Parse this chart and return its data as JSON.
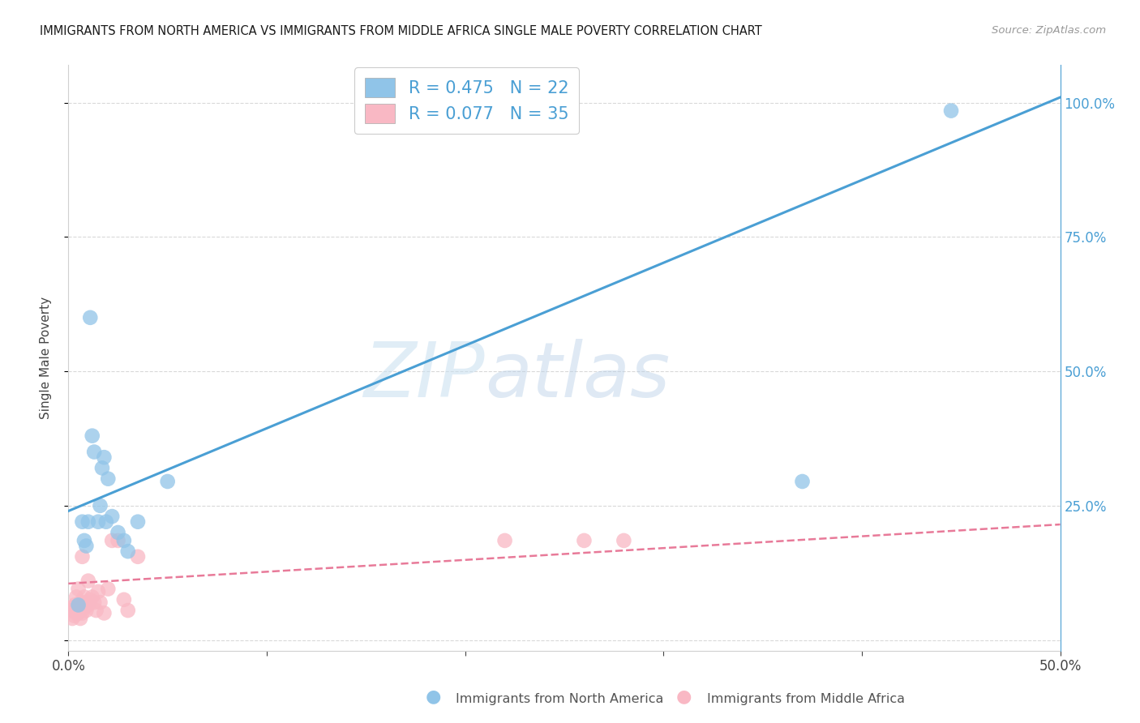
{
  "title": "IMMIGRANTS FROM NORTH AMERICA VS IMMIGRANTS FROM MIDDLE AFRICA SINGLE MALE POVERTY CORRELATION CHART",
  "source": "Source: ZipAtlas.com",
  "ylabel": "Single Male Poverty",
  "legend_label1": "Immigrants from North America",
  "legend_label2": "Immigrants from Middle Africa",
  "R1": 0.475,
  "N1": 22,
  "R2": 0.077,
  "N2": 35,
  "xlim": [
    0.0,
    0.5
  ],
  "ylim": [
    -0.02,
    1.07
  ],
  "xticks": [
    0.0,
    0.1,
    0.2,
    0.3,
    0.4,
    0.5
  ],
  "xtick_labels": [
    "0.0%",
    "",
    "",
    "",
    "",
    "50.0%"
  ],
  "yticks_right": [
    0.0,
    0.25,
    0.5,
    0.75,
    1.0
  ],
  "ytick_labels_right": [
    "",
    "25.0%",
    "50.0%",
    "75.0%",
    "100.0%"
  ],
  "color_blue": "#90c4e8",
  "color_blue_line": "#4a9fd4",
  "color_pink": "#f9b8c4",
  "color_pink_line": "#e87a99",
  "watermark_zip": "ZIP",
  "watermark_atlas": "atlas",
  "blue_line_x0": 0.0,
  "blue_line_y0": 0.24,
  "blue_line_x1": 0.5,
  "blue_line_y1": 1.01,
  "pink_line_x0": 0.0,
  "pink_line_y0": 0.105,
  "pink_line_x1": 0.5,
  "pink_line_y1": 0.215,
  "blue_x": [
    0.005,
    0.007,
    0.008,
    0.009,
    0.01,
    0.011,
    0.012,
    0.013,
    0.015,
    0.016,
    0.017,
    0.018,
    0.019,
    0.02,
    0.022,
    0.025,
    0.028,
    0.03,
    0.035,
    0.05,
    0.37,
    0.445
  ],
  "blue_y": [
    0.065,
    0.22,
    0.185,
    0.175,
    0.22,
    0.6,
    0.38,
    0.35,
    0.22,
    0.25,
    0.32,
    0.34,
    0.22,
    0.3,
    0.23,
    0.2,
    0.185,
    0.165,
    0.22,
    0.295,
    0.295,
    0.985
  ],
  "pink_x": [
    0.001,
    0.002,
    0.002,
    0.003,
    0.003,
    0.004,
    0.004,
    0.005,
    0.005,
    0.006,
    0.006,
    0.007,
    0.007,
    0.008,
    0.008,
    0.009,
    0.009,
    0.01,
    0.01,
    0.011,
    0.012,
    0.013,
    0.014,
    0.015,
    0.016,
    0.018,
    0.02,
    0.022,
    0.025,
    0.028,
    0.03,
    0.035,
    0.22,
    0.26,
    0.28
  ],
  "pink_y": [
    0.055,
    0.04,
    0.06,
    0.045,
    0.065,
    0.05,
    0.08,
    0.05,
    0.095,
    0.04,
    0.07,
    0.05,
    0.155,
    0.06,
    0.08,
    0.055,
    0.07,
    0.065,
    0.11,
    0.075,
    0.08,
    0.07,
    0.055,
    0.09,
    0.07,
    0.05,
    0.095,
    0.185,
    0.185,
    0.075,
    0.055,
    0.155,
    0.185,
    0.185,
    0.185
  ]
}
